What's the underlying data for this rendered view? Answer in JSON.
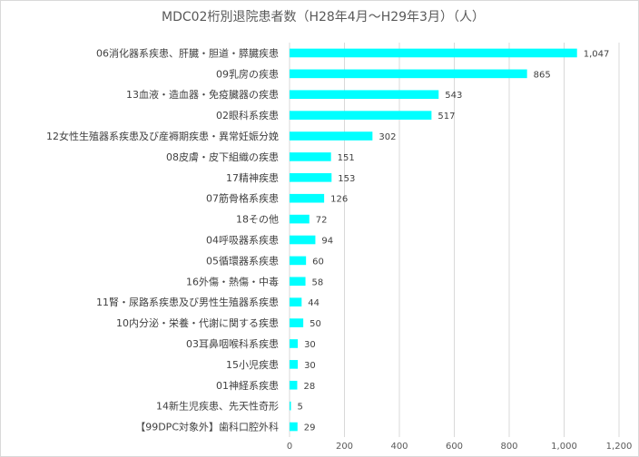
{
  "chart_data": {
    "type": "bar",
    "orientation": "horizontal",
    "title": "MDC02桁別退院患者数（H28年4月～H29年3月）（人）",
    "categories": [
      "06消化器系疾患、肝臓・胆道・膵臓疾患",
      "09乳房の疾患",
      "13血液・造血器・免疫臓器の疾患",
      "02眼科系疾患",
      "12女性生殖器系疾患及び産褥期疾患・異常妊娠分娩",
      "08皮膚・皮下組織の疾患",
      "17精神疾患",
      "07筋骨格系疾患",
      "18その他",
      "04呼吸器系疾患",
      "05循環器系疾患",
      "16外傷・熱傷・中毒",
      "11腎・尿路系疾患及び男性生殖器系疾患",
      "10内分泌・栄養・代謝に関する疾患",
      "03耳鼻咽喉科系疾患",
      "15小児疾患",
      "01神経系疾患",
      "14新生児疾患、先天性奇形",
      "【99DPC対象外】歯科口腔外科"
    ],
    "values": [
      1047,
      865,
      543,
      517,
      302,
      151,
      153,
      126,
      72,
      94,
      60,
      58,
      44,
      50,
      30,
      30,
      28,
      5,
      29
    ],
    "value_labels": [
      "1,047",
      "865",
      "543",
      "517",
      "302",
      "151",
      "153",
      "126",
      "72",
      "94",
      "60",
      "58",
      "44",
      "50",
      "30",
      "30",
      "28",
      "5",
      "29"
    ],
    "xlim": [
      0,
      1200
    ],
    "xticks": [
      0,
      200,
      400,
      600,
      800,
      1000,
      1200
    ],
    "xtick_labels": [
      "0",
      "200",
      "400",
      "600",
      "800",
      "1,000",
      "1,200"
    ],
    "grid": true,
    "legend": "none",
    "colors": {
      "bar": "#00FFFF",
      "grid": "#D9D9D9",
      "text": "#404040",
      "title": "#595959"
    }
  }
}
